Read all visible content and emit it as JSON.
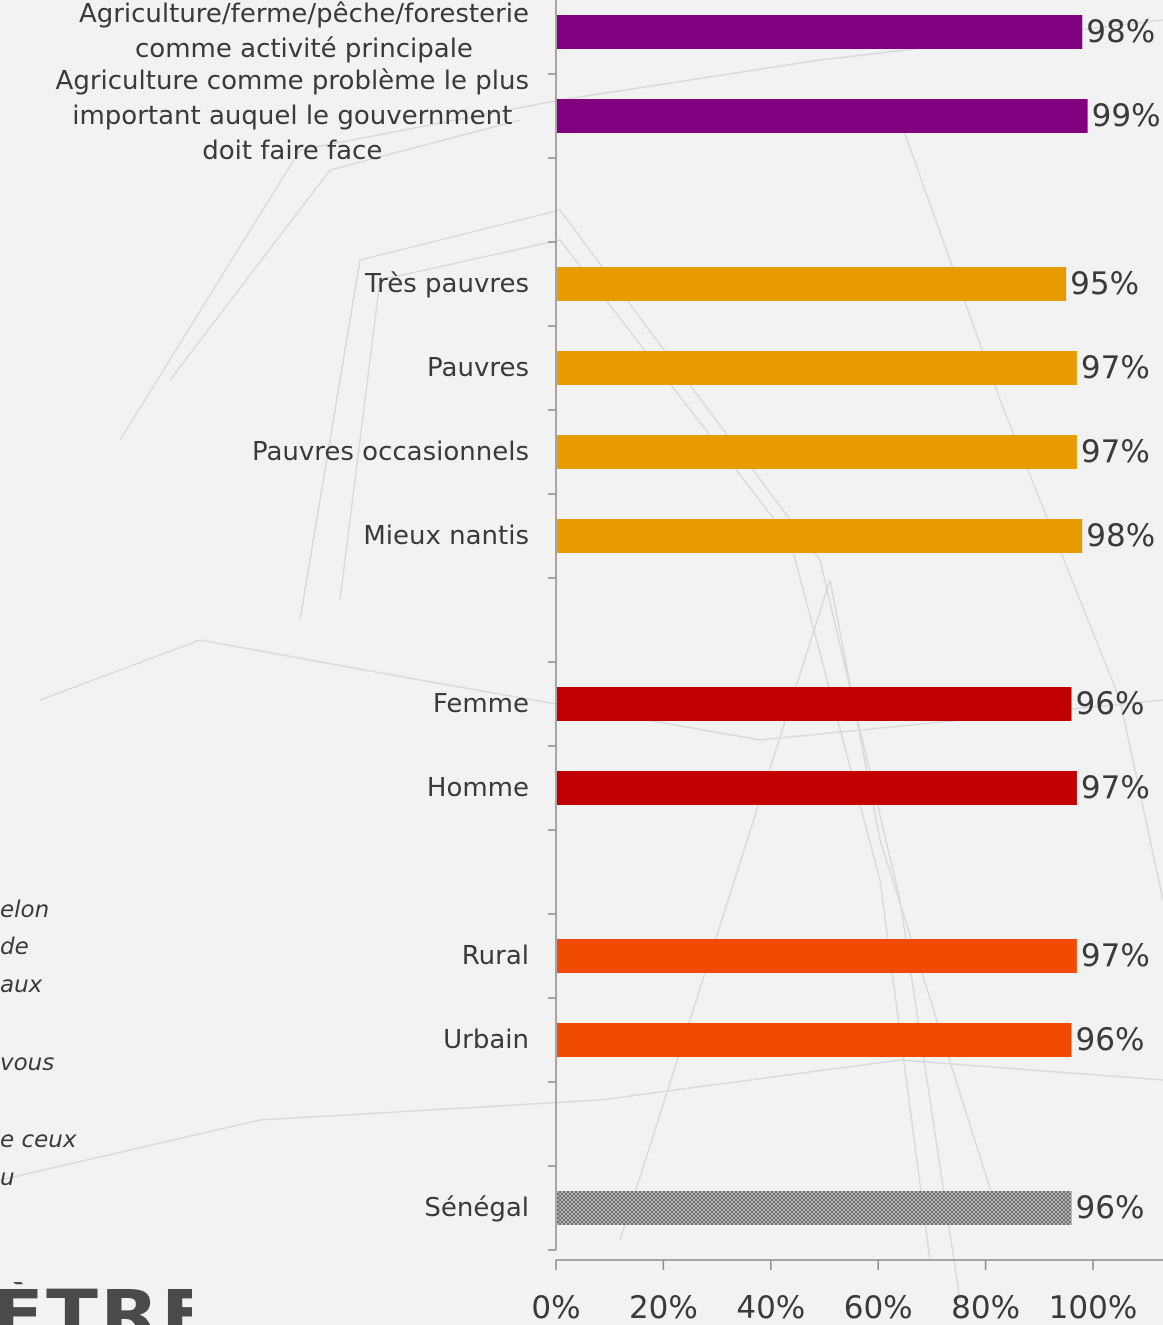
{
  "chart_data": {
    "type": "bar",
    "orientation": "horizontal",
    "categories": [
      "Agriculture/ferme/pêche/foresterie\ncomme activité principale",
      "Agriculture comme problème le plus\nimportant auquel le gouvernment\ndoit faire face",
      "Très pauvres",
      "Pauvres",
      "Pauvres occasionnels",
      "Mieux nantis",
      "Femme",
      "Homme",
      "Rural",
      "Urbain",
      "Sénégal"
    ],
    "values": [
      98,
      99,
      95,
      97,
      97,
      98,
      96,
      97,
      97,
      96,
      96
    ],
    "value_labels": [
      "98%",
      "99%",
      "95%",
      "97%",
      "97%",
      "98%",
      "96%",
      "97%",
      "97%",
      "96%",
      "96%"
    ],
    "bar_colors": [
      "#800080",
      "#800080",
      "#e89b00",
      "#e89b00",
      "#e89b00",
      "#e89b00",
      "#c00000",
      "#c00000",
      "#f04b00",
      "#f04b00",
      "hatched-gray"
    ],
    "x_ticks": [
      "0%",
      "20%",
      "40%",
      "60%",
      "80%",
      "100%"
    ],
    "xlim": [
      0,
      100
    ],
    "title": "",
    "xlabel": "",
    "ylabel": "",
    "grid": false,
    "legend": "none"
  },
  "side_text_fragments": [
    "elon",
    "de",
    "aux",
    "vous",
    "e ceux",
    "u"
  ],
  "logo_fragment_text": "ÈTRE",
  "colors": {
    "background": "#f2f2f2",
    "text": "#3a3a3a",
    "axis": "#8c8c8c",
    "purple": "#800080",
    "orange": "#e89b00",
    "red": "#c00000",
    "orange_red": "#f04b00",
    "hatch": "#6e6e6e"
  }
}
